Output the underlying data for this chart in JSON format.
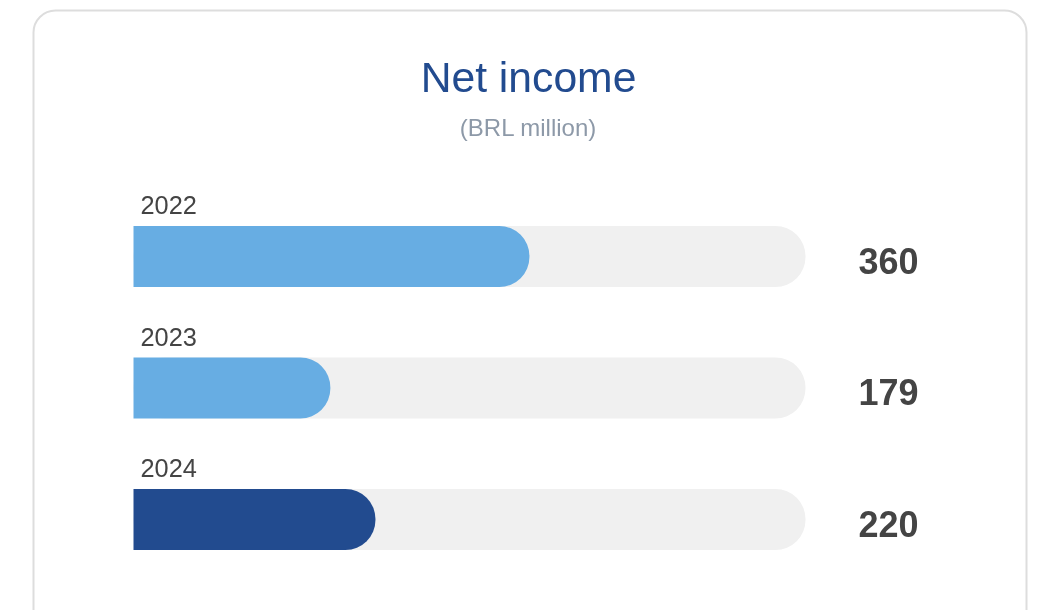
{
  "chart_data": {
    "type": "bar",
    "orientation": "horizontal",
    "title": "Net income",
    "subtitle": "(BRL million)",
    "categories": [
      "2022",
      "2023",
      "2024"
    ],
    "values": [
      360,
      179,
      220
    ],
    "colors": [
      "#67ade3",
      "#67ade3",
      "#224b8f"
    ],
    "xlim": [
      0,
      611
    ],
    "data_labels": true,
    "tick_labels": false
  }
}
